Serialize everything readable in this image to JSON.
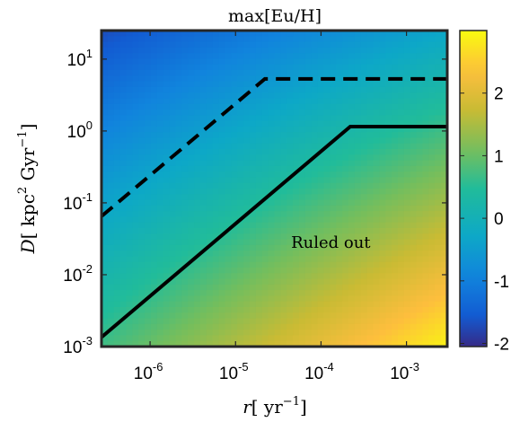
{
  "chart_data": {
    "type": "heatmap",
    "title": "max[Eu/H]",
    "xlabel": {
      "var": "r",
      "unit": "[ yr",
      "exp": "−1",
      "close": "]"
    },
    "ylabel": {
      "var": "D",
      "unit": "[ kpc",
      "exp1": "2",
      "mid": " Gyr",
      "exp2": "−1",
      "close": "]"
    },
    "x_scale": "log",
    "y_scale": "log",
    "xlim": [
      2.7e-07,
      0.003
    ],
    "ylim": [
      0.001,
      25
    ],
    "x_ticks": [
      {
        "value": 1e-06,
        "base": "10",
        "exp": "-6"
      },
      {
        "value": 1e-05,
        "base": "10",
        "exp": "-5"
      },
      {
        "value": 0.0001,
        "base": "10",
        "exp": "-4"
      },
      {
        "value": 0.001,
        "base": "10",
        "exp": "-3"
      }
    ],
    "y_ticks": [
      {
        "value": 0.001,
        "base": "10",
        "exp": "-3"
      },
      {
        "value": 0.01,
        "base": "10",
        "exp": "-2"
      },
      {
        "value": 0.1,
        "base": "10",
        "exp": "-1"
      },
      {
        "value": 1,
        "base": "10",
        "exp": "0"
      },
      {
        "value": 10,
        "base": "10",
        "exp": "1"
      }
    ],
    "colorbar": {
      "colormap": "parula",
      "clim": [
        -2.05,
        3.0
      ],
      "ticks": [
        {
          "value": -2,
          "label": "-2"
        },
        {
          "value": -1,
          "label": "-1"
        },
        {
          "value": 0,
          "label": "0"
        },
        {
          "value": 1,
          "label": "1"
        },
        {
          "value": 2,
          "label": "2"
        }
      ]
    },
    "field_corners": {
      "top_left": -1.7,
      "top_right": -0.3,
      "bottom_left": 0.7,
      "bottom_right": 2.9
    },
    "series": [
      {
        "style": "solid",
        "color": "#000000",
        "x": [
          2.7e-07,
          0.00022,
          0.003
        ],
        "y": [
          0.00135,
          1.15,
          1.15
        ]
      },
      {
        "style": "dashed",
        "color": "#000000",
        "x": [
          2.7e-07,
          2.2e-05,
          0.003
        ],
        "y": [
          0.065,
          5.3,
          5.3
        ]
      }
    ],
    "annotations": [
      {
        "text": "Ruled out",
        "x": 0.00013,
        "y": 0.028
      }
    ],
    "grid": false,
    "legend": false
  }
}
